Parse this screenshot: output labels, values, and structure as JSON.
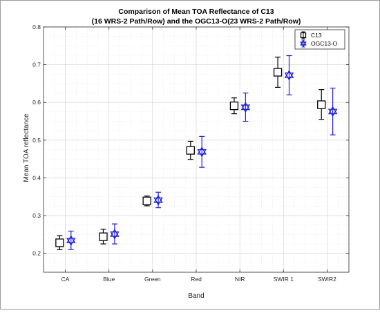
{
  "chart_data": {
    "type": "scatter",
    "title": [
      "Comparison of Mean TOA Reflectance of C13",
      "(16 WRS-2 Path/Row) and the OGC13-O(23 WRS-2 Path/Row)"
    ],
    "xlabel": "Band",
    "ylabel": "Mean TOA reflectance",
    "categories": [
      "CA",
      "Blue",
      "Green",
      "Red",
      "NIR",
      "SWIR 1",
      "SWIR2"
    ],
    "ylim": [
      0.15,
      0.8
    ],
    "yticks": [
      "0.2",
      "0.3",
      "0.4",
      "0.5",
      "0.6",
      "0.7",
      "0.8"
    ],
    "grid": true,
    "legend_position": "top-right",
    "series": [
      {
        "name": "C13",
        "color": "#000000",
        "marker": "square",
        "values": [
          0.228,
          0.244,
          0.339,
          0.473,
          0.591,
          0.68,
          0.594
        ],
        "lower": [
          0.21,
          0.225,
          0.326,
          0.449,
          0.57,
          0.64,
          0.555
        ],
        "upper": [
          0.247,
          0.264,
          0.352,
          0.497,
          0.612,
          0.72,
          0.634
        ]
      },
      {
        "name": "OGC13-O",
        "color": "#1f1fd8",
        "marker": "hexagram",
        "values": [
          0.234,
          0.251,
          0.341,
          0.469,
          0.587,
          0.672,
          0.576
        ],
        "lower": [
          0.21,
          0.225,
          0.321,
          0.428,
          0.55,
          0.62,
          0.514
        ],
        "upper": [
          0.259,
          0.278,
          0.362,
          0.51,
          0.625,
          0.724,
          0.638
        ]
      }
    ]
  }
}
